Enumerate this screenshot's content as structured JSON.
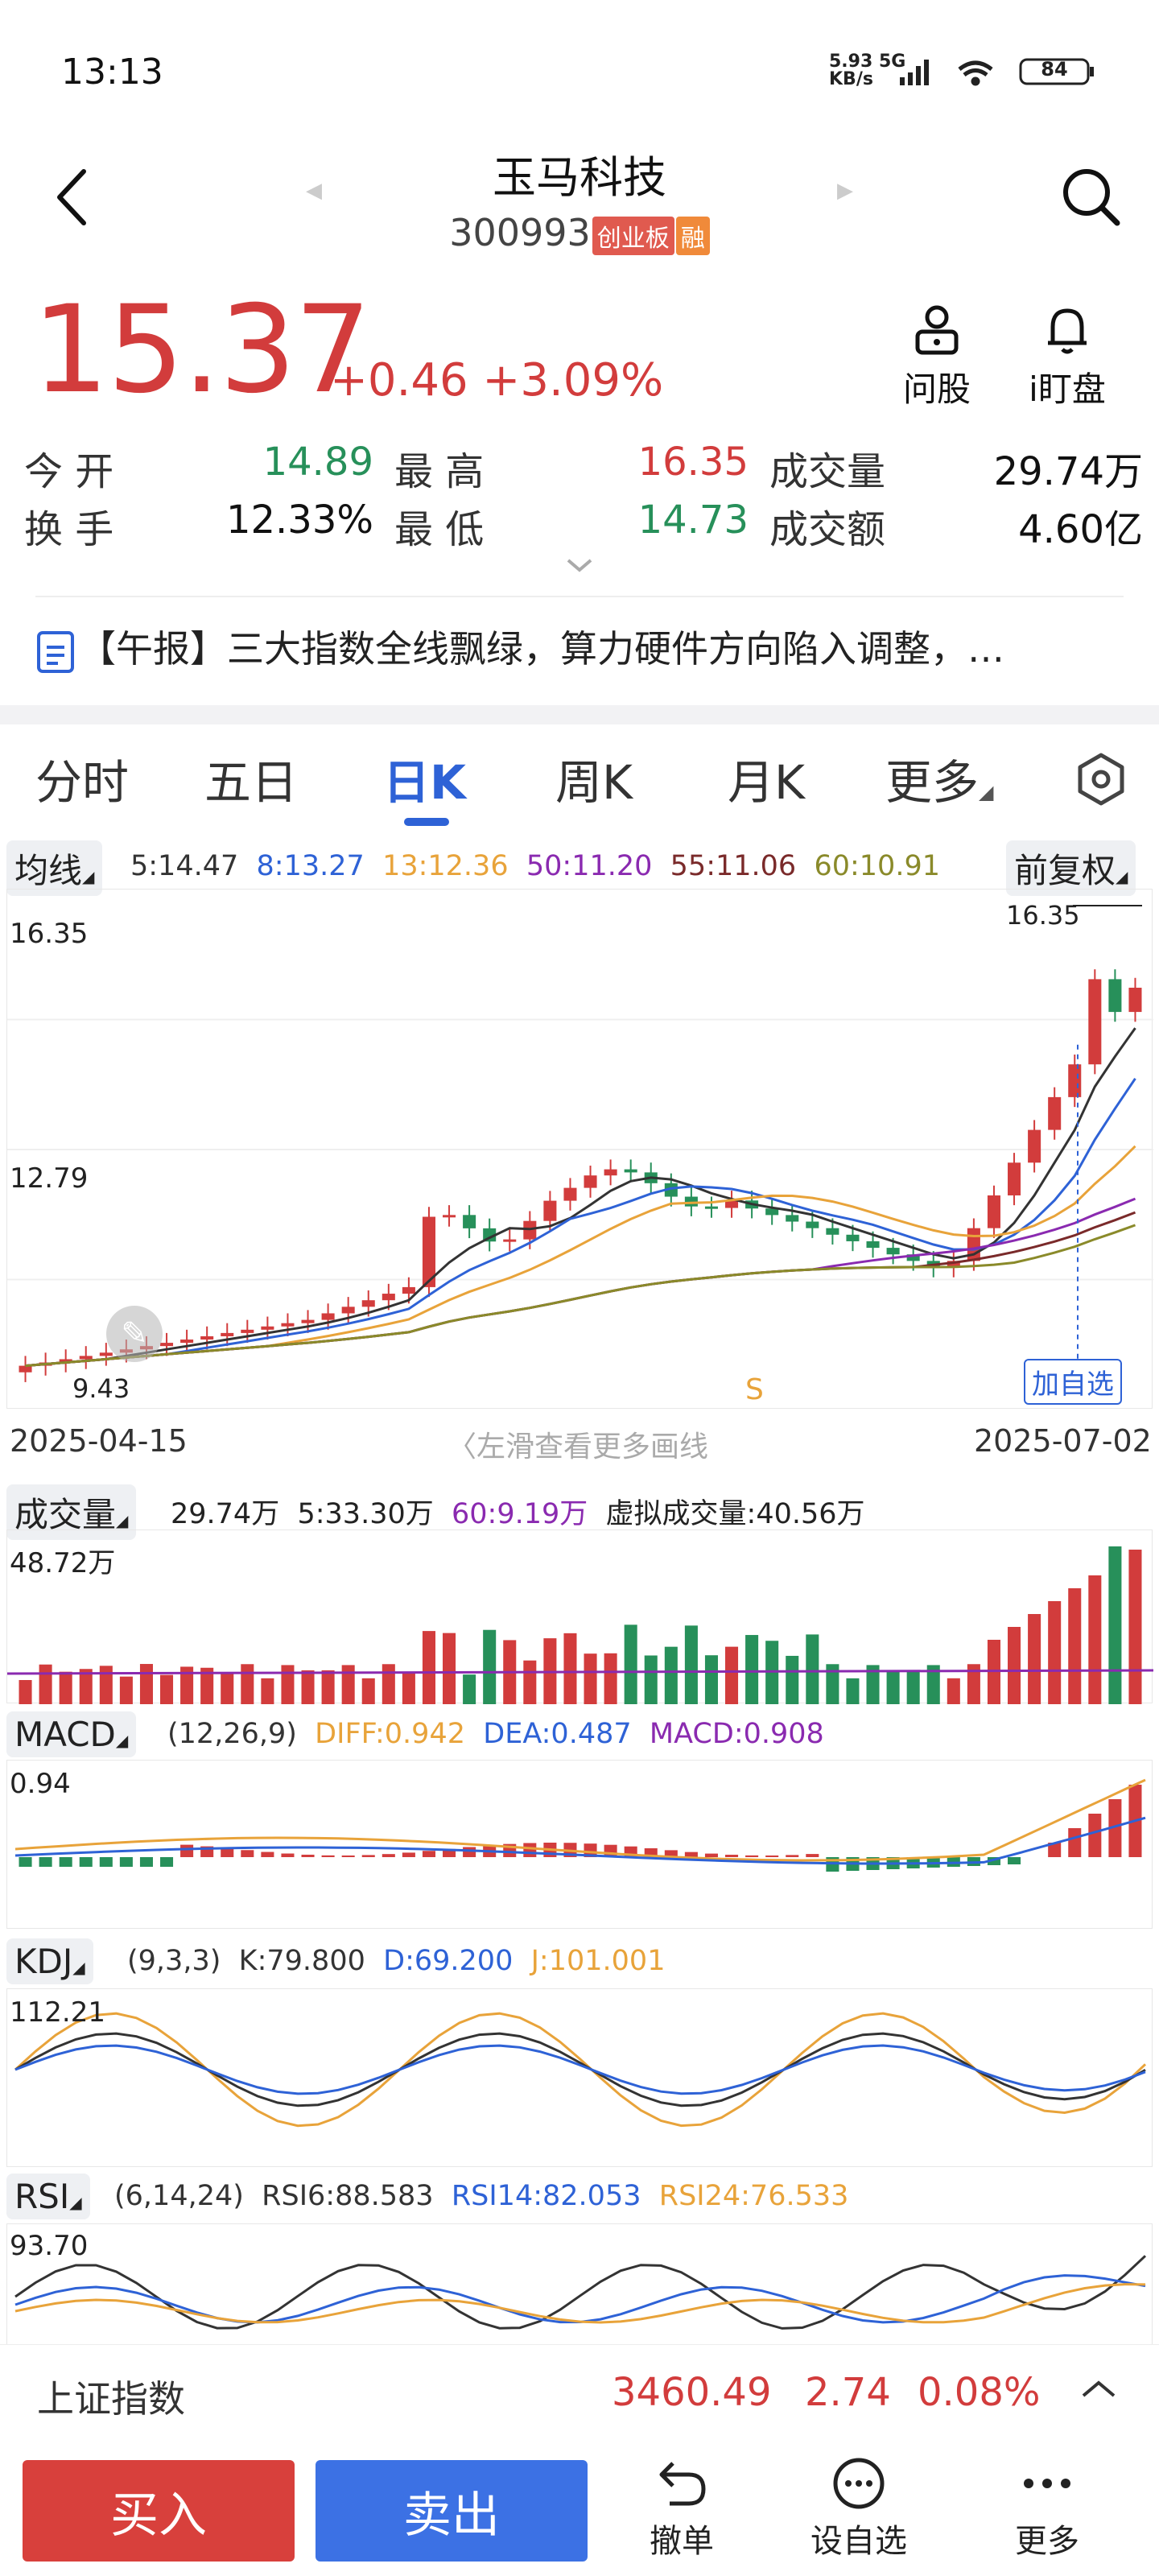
{
  "status_bar": {
    "time": "13:13",
    "net_speed": "5.93",
    "net_unit": "KB/s",
    "net_type": "5G",
    "battery": "84"
  },
  "header": {
    "stock_name": "玉马科技",
    "stock_code": "300993",
    "board_tag": "创业板",
    "margin_tag": "融"
  },
  "quote": {
    "price": "15.37",
    "change": "+0.46",
    "change_pct": "+3.09%",
    "ask_label": "问股",
    "watch_label": "i盯盘"
  },
  "stats": {
    "open_label": "今 开",
    "open_value": "14.89",
    "high_label": "最 高",
    "high_value": "16.35",
    "volume_label": "成交量",
    "volume_value": "29.74万",
    "turnover_label": "换 手",
    "turnover_value": "12.33%",
    "low_label": "最 低",
    "low_value": "14.73",
    "amount_label": "成交额",
    "amount_value": "4.60亿"
  },
  "news": {
    "text": "【午报】三大指数全线飘绿，算力硬件方向陷入调整，…"
  },
  "period_tabs": [
    "分时",
    "五日",
    "日K",
    "周K",
    "月K",
    "更多"
  ],
  "active_tab": "日K",
  "ma_legend": {
    "selector": "均线",
    "adjust": "前复权",
    "items": [
      {
        "text": "5:14.47",
        "color": "#333333"
      },
      {
        "text": "8:13.27",
        "color": "#2e62d6"
      },
      {
        "text": "13:12.36",
        "color": "#e8a33a"
      },
      {
        "text": "50:11.20",
        "color": "#8a2ab0"
      },
      {
        "text": "55:11.06",
        "color": "#7a2a2a"
      },
      {
        "text": "60:10.91",
        "color": "#8a8a2a"
      }
    ]
  },
  "kline": {
    "y_top_label": "16.35",
    "y_mid_label": "12.79",
    "high_marker": "16.35",
    "low_marker": "9.43",
    "start_date": "2025-04-15",
    "end_date": "2025-07-02",
    "hint": "左滑查看更多画线",
    "watch_button": "加自选",
    "s_marker": "S"
  },
  "volume_panel": {
    "selector": "成交量",
    "legend": [
      {
        "text": "29.74万",
        "color": "#222222"
      },
      {
        "text": "5:33.30万",
        "color": "#222222"
      },
      {
        "text": "60:9.19万",
        "color": "#8a2ab0"
      },
      {
        "text": "虚拟成交量:40.56万",
        "color": "#222222"
      }
    ],
    "y_top_label": "48.72万"
  },
  "macd_panel": {
    "selector": "MACD",
    "legend": [
      {
        "text": "(12,26,9)",
        "color": "#333333"
      },
      {
        "text": "DIFF:0.942",
        "color": "#e8a33a"
      },
      {
        "text": "DEA:0.487",
        "color": "#2e62d6"
      },
      {
        "text": "MACD:0.908",
        "color": "#8a2ab0"
      }
    ],
    "y_top_label": "0.94"
  },
  "kdj_panel": {
    "selector": "KDJ",
    "legend": [
      {
        "text": "(9,3,3)",
        "color": "#333333"
      },
      {
        "text": "K:79.800",
        "color": "#333333"
      },
      {
        "text": "D:69.200",
        "color": "#2e62d6"
      },
      {
        "text": "J:101.001",
        "color": "#e8a33a"
      }
    ],
    "y_top_label": "112.21"
  },
  "rsi_panel": {
    "selector": "RSI",
    "legend": [
      {
        "text": "(6,14,24)",
        "color": "#333333"
      },
      {
        "text": "RSI6:88.583",
        "color": "#333333"
      },
      {
        "text": "RSI14:82.053",
        "color": "#2e62d6"
      },
      {
        "text": "RSI24:76.533",
        "color": "#e8a33a"
      }
    ],
    "y_top_label": "93.70"
  },
  "index_bar": {
    "name": "上证指数",
    "value": "3460.49",
    "change": "2.74",
    "change_pct": "0.08%"
  },
  "trade_bar": {
    "buy": "买入",
    "sell": "卖出",
    "cancel": "撤单",
    "add_watch": "设自选",
    "more": "更多"
  },
  "colors": {
    "up": "#d23c3c",
    "down": "#27905a",
    "accent": "#2e62d6"
  }
}
